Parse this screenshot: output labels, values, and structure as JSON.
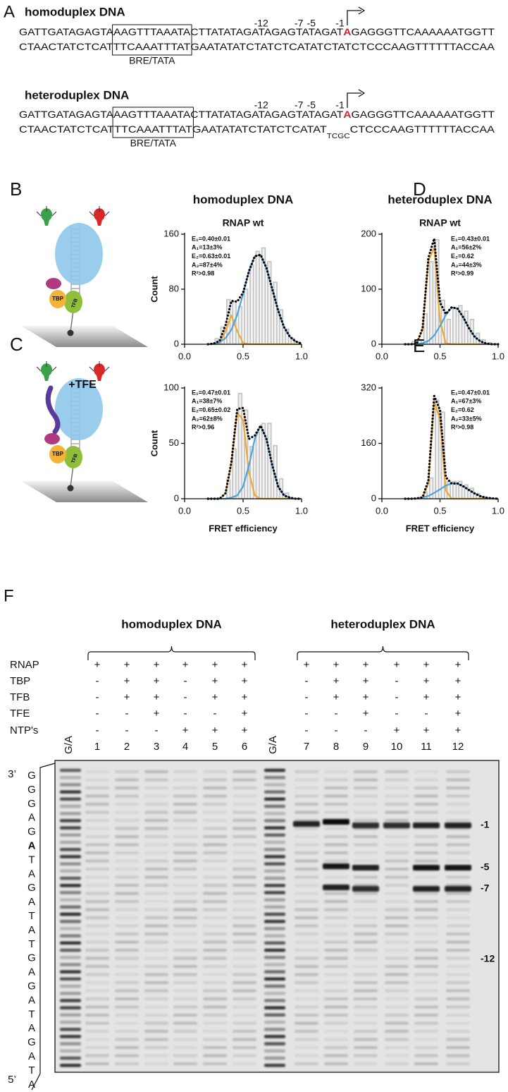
{
  "panel_a": {
    "label": "A",
    "duplexes": [
      {
        "title": "homoduplex DNA",
        "positions": [
          "-12",
          "-7",
          "-5",
          "-1"
        ],
        "top_strand": [
          "GATTGATAGAGTA",
          "AAGTTTAAATA",
          "CTTATATAGATAGAGTATAGAT",
          "A",
          "GAGGGTTCAAAAAATGGTT"
        ],
        "bottom_strand": [
          "CTAACTATCTCAT",
          "TTCAAATTTAT",
          "GAATATATCTATCTCATATCTATCTCCCAAGTTTTTTACCAA"
        ],
        "box_label": "BRE/TATA"
      },
      {
        "title": "heteroduplex DNA",
        "positions": [
          "-12",
          "-7",
          "-5",
          "-1"
        ],
        "top_strand": [
          "GATTGATAGAGTA",
          "AAGTTTAAATA",
          "CTTATATAGATAGAGTATAGAT",
          "A",
          "GAGGGTTCAAAAAATGGTT"
        ],
        "bottom_strand": [
          "CTAACTATCTCAT",
          "TTCAAATTTAT",
          "GAATATATCTATCTCATAT",
          "TCGC",
          "CTCCCAAGTTTTTTACCAA"
        ],
        "box_label": "BRE/TATA"
      }
    ]
  },
  "cartoons": [
    {
      "proteins": [
        "TBP",
        "TFB"
      ]
    },
    {
      "label": "+TFE",
      "proteins": [
        "TBP",
        "TFB"
      ]
    }
  ],
  "chart_data": [
    {
      "type": "histogram",
      "panel": "B",
      "title": "homoduplex DNA",
      "subtitle": "RNAP wt",
      "ylabel": "Count",
      "bins": [
        0.2,
        0.25,
        0.3,
        0.35,
        0.4,
        0.45,
        0.5,
        0.55,
        0.6,
        0.65,
        0.7,
        0.75,
        0.8,
        0.85,
        0.9,
        0.95,
        1.0
      ],
      "values": [
        0,
        8,
        25,
        65,
        62,
        55,
        80,
        115,
        135,
        140,
        120,
        90,
        50,
        22,
        8,
        0
      ],
      "color": "#c4c4c4",
      "x": [
        0.2,
        0.25,
        0.3,
        0.35,
        0.4,
        0.45,
        0.5,
        0.55,
        0.6,
        0.65,
        0.7,
        0.75,
        0.8,
        0.85,
        0.9,
        0.95,
        1.0
      ],
      "series": [
        {
          "color": "#f0a830",
          "values": [
            0,
            0,
            2,
            19,
            42,
            19,
            2,
            0,
            0,
            0,
            0,
            0,
            0,
            0,
            0,
            0,
            0
          ]
        },
        {
          "color": "#4ba3e0",
          "values": [
            0,
            1,
            3,
            9,
            21,
            43,
            73,
            106,
            128,
            130,
            111,
            80,
            49,
            25,
            11,
            4,
            1
          ]
        },
        {
          "color": "#000000",
          "style": "dotted",
          "values": [
            0,
            1,
            5,
            28,
            63,
            62,
            75,
            106,
            128,
            130,
            111,
            80,
            49,
            25,
            11,
            4,
            1
          ]
        }
      ],
      "annotations": [
        {
          "text": "E₁=0.40±0.01",
          "color": "#f0a830"
        },
        {
          "text": "A₁=13±3%",
          "color": "#f0a830"
        },
        {
          "text": "E₂=0.63±0.01",
          "color": "#4ba3e0"
        },
        {
          "text": "A₂=87±4%",
          "color": "#4ba3e0"
        },
        {
          "text": "R²>0.98",
          "color": "#000000"
        }
      ],
      "xlim": [
        0,
        1
      ],
      "xticks": [
        {
          "value": 0,
          "label": "0.0"
        },
        {
          "value": 0.5,
          "label": "0.5"
        },
        {
          "value": 1,
          "label": "1.0"
        }
      ],
      "ylim": [
        0,
        160
      ],
      "yticks": [
        0,
        80,
        160
      ]
    },
    {
      "type": "histogram",
      "panel": "C",
      "ylabel": "Count",
      "xlabel": "FRET efficiency",
      "bins": [
        0.2,
        0.25,
        0.3,
        0.35,
        0.4,
        0.45,
        0.5,
        0.55,
        0.6,
        0.65,
        0.7,
        0.75,
        0.8,
        0.85,
        0.9,
        0.95,
        1.0
      ],
      "values": [
        0,
        0,
        0,
        17,
        45,
        95,
        80,
        47,
        60,
        68,
        68,
        48,
        18,
        5,
        0,
        0
      ],
      "color": "#c4c4c4",
      "x": [
        0.2,
        0.25,
        0.3,
        0.35,
        0.4,
        0.45,
        0.5,
        0.55,
        0.6,
        0.65,
        0.7,
        0.75,
        0.8,
        0.85,
        0.9,
        0.95,
        1.0
      ],
      "series": [
        {
          "color": "#f0a830",
          "values": [
            0,
            0,
            0,
            5,
            32,
            78,
            71,
            24,
            3,
            0,
            0,
            0,
            0,
            0,
            0,
            0,
            0
          ]
        },
        {
          "color": "#4ba3e0",
          "values": [
            0,
            0,
            0,
            0,
            1,
            3,
            11,
            30,
            54,
            66,
            54,
            30,
            11,
            3,
            1,
            0,
            0
          ]
        },
        {
          "color": "#000000",
          "style": "dotted",
          "values": [
            0,
            0,
            0,
            5,
            33,
            81,
            82,
            54,
            57,
            66,
            54,
            30,
            11,
            3,
            1,
            0,
            0
          ]
        }
      ],
      "annotations": [
        {
          "text": "E₁=0.47±0.01",
          "color": "#f0a830"
        },
        {
          "text": "A₁=38±7%",
          "color": "#f0a830"
        },
        {
          "text": "E₂=0.65±0.02",
          "color": "#4ba3e0"
        },
        {
          "text": "A₂=62±8%",
          "color": "#4ba3e0"
        },
        {
          "text": "R²>0.96",
          "color": "#000000"
        }
      ],
      "xlim": [
        0,
        1
      ],
      "xticks": [
        {
          "value": 0,
          "label": "0.0"
        },
        {
          "value": 0.5,
          "label": "0.5"
        },
        {
          "value": 1,
          "label": "1.0"
        }
      ],
      "ylim": [
        0,
        100
      ],
      "yticks": [
        0,
        50,
        100
      ]
    },
    {
      "type": "histogram",
      "panel": "D",
      "title": "heteroduplex DNA",
      "subtitle": "RNAP wt",
      "bins": [
        0.2,
        0.25,
        0.3,
        0.35,
        0.4,
        0.45,
        0.5,
        0.55,
        0.6,
        0.65,
        0.7,
        0.75,
        0.8,
        0.85,
        0.9,
        0.95,
        1.0
      ],
      "values": [
        0,
        5,
        8,
        55,
        150,
        190,
        80,
        45,
        65,
        70,
        60,
        45,
        20,
        8,
        3,
        0
      ],
      "color": "#c4c4c4",
      "x": [
        0.2,
        0.25,
        0.3,
        0.35,
        0.4,
        0.45,
        0.5,
        0.55,
        0.6,
        0.65,
        0.7,
        0.75,
        0.8,
        0.85,
        0.9,
        0.95,
        1.0
      ],
      "series": [
        {
          "color": "#f0a830",
          "values": [
            0,
            0,
            1,
            27,
            151,
            176,
            43,
            2,
            0,
            0,
            0,
            0,
            0,
            0,
            0,
            0,
            0
          ]
        },
        {
          "color": "#4ba3e0",
          "values": [
            0,
            0,
            0,
            2,
            6,
            16,
            33,
            53,
            67,
            65,
            49,
            29,
            13,
            5,
            1,
            0,
            0
          ]
        },
        {
          "color": "#000000",
          "style": "dotted",
          "values": [
            0,
            0,
            1,
            29,
            157,
            192,
            76,
            55,
            67,
            65,
            49,
            29,
            13,
            5,
            1,
            0,
            0
          ]
        }
      ],
      "annotations": [
        {
          "text": "E₁=0.43±0.01",
          "color": "#f0a830"
        },
        {
          "text": "A₁=56±2%",
          "color": "#f0a830"
        },
        {
          "text": "E₂=0.62",
          "color": "#4ba3e0"
        },
        {
          "text": "A₂=44±3%",
          "color": "#4ba3e0"
        },
        {
          "text": "R²>0.99",
          "color": "#000000"
        }
      ],
      "xlim": [
        0,
        1
      ],
      "xticks": [
        {
          "value": 0,
          "label": "0.0"
        },
        {
          "value": 0.5,
          "label": "0.5"
        },
        {
          "value": 1,
          "label": "1.0"
        }
      ],
      "ylim": [
        0,
        200
      ],
      "yticks": [
        0,
        100,
        200
      ]
    },
    {
      "type": "histogram",
      "panel": "E",
      "xlabel": "FRET efficiency",
      "bins": [
        0.2,
        0.25,
        0.3,
        0.35,
        0.4,
        0.45,
        0.5,
        0.55,
        0.6,
        0.65,
        0.7,
        0.75,
        0.8,
        0.85,
        0.9,
        0.95,
        1.0
      ],
      "values": [
        0,
        0,
        0,
        20,
        60,
        285,
        250,
        50,
        50,
        50,
        40,
        30,
        15,
        5,
        2,
        0
      ],
      "color": "#c4c4c4",
      "x": [
        0.2,
        0.25,
        0.3,
        0.35,
        0.4,
        0.45,
        0.5,
        0.55,
        0.6,
        0.65,
        0.7,
        0.75,
        0.8,
        0.85,
        0.9,
        0.95,
        1.0
      ],
      "series": [
        {
          "color": "#f0a830",
          "values": [
            0,
            0,
            0,
            1,
            45,
            280,
            229,
            24,
            0,
            0,
            0,
            0,
            0,
            0,
            0,
            0,
            0
          ]
        },
        {
          "color": "#4ba3e0",
          "values": [
            0,
            0,
            1,
            4,
            8,
            17,
            27,
            38,
            44,
            44,
            36,
            25,
            15,
            7,
            3,
            1,
            0
          ]
        },
        {
          "color": "#000000",
          "style": "dotted",
          "values": [
            0,
            0,
            1,
            4,
            53,
            297,
            256,
            62,
            44,
            44,
            36,
            25,
            15,
            7,
            3,
            1,
            0
          ]
        }
      ],
      "annotations": [
        {
          "text": "E₁=0.47±0.01",
          "color": "#f0a830"
        },
        {
          "text": "A₁=67±3%",
          "color": "#f0a830"
        },
        {
          "text": "E₂=0.62",
          "color": "#4ba3e0"
        },
        {
          "text": "A₂=33±5%",
          "color": "#4ba3e0"
        },
        {
          "text": "R²>0.98",
          "color": "#000000"
        }
      ],
      "xlim": [
        0,
        1
      ],
      "xticks": [
        {
          "value": 0,
          "label": "0.0"
        },
        {
          "value": 0.5,
          "label": "0.5"
        },
        {
          "value": 1,
          "label": "1.0"
        }
      ],
      "ylim": [
        0,
        320
      ],
      "yticks": [
        0,
        160,
        320
      ]
    }
  ],
  "panel_f": {
    "label": "F",
    "groups": [
      {
        "title": "homoduplex DNA"
      },
      {
        "title": "heteroduplex DNA"
      }
    ],
    "row_labels": [
      "RNAP",
      "TBP",
      "TFB",
      "TFE",
      "NTP's"
    ],
    "ladder_labels": [
      "G/A",
      "G/A"
    ],
    "lanes": [
      {
        "number": "1",
        "conditions": [
          "+",
          "-",
          "-",
          "-",
          "-"
        ]
      },
      {
        "number": "2",
        "conditions": [
          "+",
          "+",
          "+",
          "-",
          "-"
        ]
      },
      {
        "number": "3",
        "conditions": [
          "+",
          "+",
          "+",
          "+",
          "-"
        ]
      },
      {
        "number": "4",
        "conditions": [
          "+",
          "-",
          "-",
          "-",
          "+"
        ]
      },
      {
        "number": "5",
        "conditions": [
          "+",
          "+",
          "+",
          "-",
          "+"
        ]
      },
      {
        "number": "6",
        "conditions": [
          "+",
          "+",
          "+",
          "+",
          "+"
        ]
      },
      {
        "number": "7",
        "conditions": [
          "+",
          "-",
          "-",
          "-",
          "-"
        ]
      },
      {
        "number": "8",
        "conditions": [
          "+",
          "+",
          "+",
          "-",
          "-"
        ]
      },
      {
        "number": "9",
        "conditions": [
          "+",
          "+",
          "+",
          "+",
          "-"
        ]
      },
      {
        "number": "10",
        "conditions": [
          "+",
          "-",
          "-",
          "-",
          "+"
        ]
      },
      {
        "number": "11",
        "conditions": [
          "+",
          "+",
          "+",
          "-",
          "+"
        ]
      },
      {
        "number": "12",
        "conditions": [
          "+",
          "+",
          "+",
          "+",
          "+"
        ]
      }
    ],
    "sequence_ends": [
      "3’",
      "5’"
    ],
    "sequence": [
      "G",
      "G",
      "G",
      "A",
      "G",
      "A",
      "T",
      "A",
      "G",
      "A",
      "T",
      "A",
      "T",
      "G",
      "A",
      "G",
      "A",
      "T",
      "A",
      "G",
      "A",
      "T",
      "A"
    ],
    "markers": [
      "-1",
      "-5",
      "-7",
      "-12"
    ]
  }
}
